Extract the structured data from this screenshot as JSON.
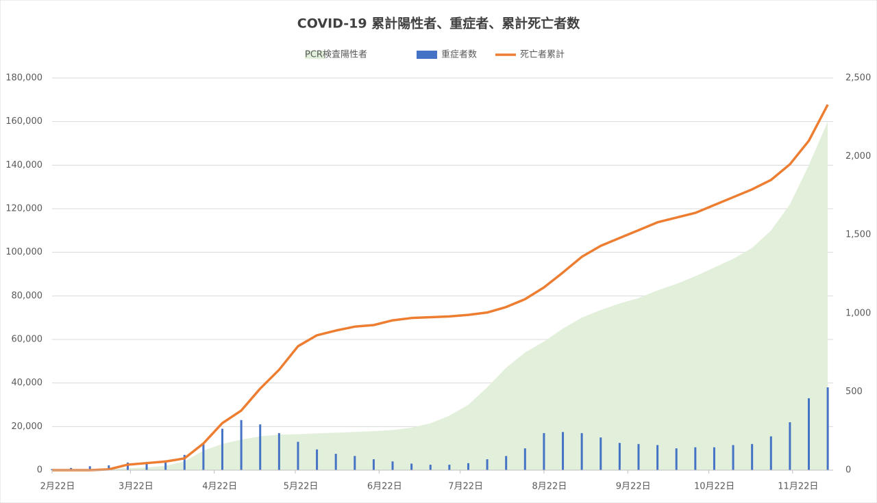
{
  "chart_data": {
    "type": "combo",
    "title": "COVID-19 累計陽性者、重症者、累計死亡者数",
    "x": [
      0,
      7,
      14,
      21,
      28,
      35,
      42,
      49,
      56,
      63,
      70,
      77,
      84,
      91,
      98,
      105,
      112,
      119,
      126,
      133,
      140,
      147,
      154,
      161,
      168,
      175,
      182,
      189,
      196,
      203,
      210,
      217,
      224,
      231,
      238,
      245,
      252,
      259,
      266,
      273,
      280,
      287
    ],
    "series": [
      {
        "name": "PCR検査陽性者",
        "type": "area",
        "color": "#e2efda",
        "values": [
          130,
          170,
          260,
          500,
          900,
          1200,
          2000,
          4000,
          9000,
          12000,
          14000,
          15500,
          16300,
          16500,
          16900,
          17200,
          17500,
          17900,
          18400,
          19500,
          21500,
          25000,
          30000,
          38000,
          47000,
          54000,
          59000,
          65000,
          70000,
          73500,
          76500,
          79000,
          82500,
          85500,
          89000,
          93000,
          97000,
          102000,
          110000,
          122000,
          140000,
          160000
        ]
      },
      {
        "name": "重症者数",
        "type": "bar",
        "color": "#4472c4",
        "values": [
          500,
          1000,
          1800,
          2200,
          3500,
          3800,
          4500,
          7000,
          12000,
          19000,
          23000,
          21000,
          17000,
          13000,
          9500,
          7500,
          6500,
          5000,
          4000,
          3000,
          2500,
          2500,
          3200,
          5000,
          6500,
          10000,
          17000,
          17500,
          17000,
          15000,
          12500,
          12000,
          11500,
          10000,
          10500,
          10500,
          11500,
          12000,
          15500,
          22000,
          33000,
          38000
        ]
      },
      {
        "name": "死亡者累計",
        "type": "line",
        "color": "#ed7d31",
        "axis": "y2",
        "values": [
          0,
          0,
          0,
          5,
          35,
          45,
          55,
          75,
          170,
          300,
          380,
          520,
          640,
          790,
          860,
          890,
          915,
          925,
          955,
          970,
          975,
          980,
          990,
          1005,
          1040,
          1090,
          1165,
          1260,
          1360,
          1430,
          1480,
          1530,
          1580,
          1610,
          1640,
          1690,
          1740,
          1790,
          1850,
          1950,
          2100,
          2330
        ]
      }
    ],
    "xlim": [
      0,
      289
    ],
    "xticks": [
      {
        "value": 0,
        "label": "2月22日"
      },
      {
        "value": 29,
        "label": "3月22日"
      },
      {
        "value": 60,
        "label": "4月22日"
      },
      {
        "value": 90,
        "label": "5月22日"
      },
      {
        "value": 121,
        "label": "6月22日"
      },
      {
        "value": 151,
        "label": "7月22日"
      },
      {
        "value": 182,
        "label": "8月22日"
      },
      {
        "value": 213,
        "label": "9月22日"
      },
      {
        "value": 243,
        "label": "10月22日"
      },
      {
        "value": 274,
        "label": "11月22日"
      }
    ],
    "ylim": [
      0,
      180000
    ],
    "yticks": [
      0,
      {
        "value": 20000,
        "label": "20,000"
      },
      {
        "value": 40000,
        "label": "40,000"
      },
      {
        "value": 60000,
        "label": "60,000"
      },
      {
        "value": 80000,
        "label": "80,000"
      },
      {
        "value": 100000,
        "label": "100,000"
      },
      {
        "value": 120000,
        "label": "120,000"
      },
      {
        "value": 140000,
        "label": "140,000"
      },
      {
        "value": 160000,
        "label": "160,000"
      },
      {
        "value": 180000,
        "label": "180,000"
      }
    ],
    "y2lim": [
      0,
      2500
    ],
    "y2ticks": [
      0,
      500,
      {
        "value": 1000,
        "label": "1,000"
      },
      {
        "value": 1500,
        "label": "1,500"
      },
      {
        "value": 2000,
        "label": "2,000"
      },
      {
        "value": 2500,
        "label": "2,500"
      }
    ],
    "grid": true,
    "legend": "top"
  }
}
